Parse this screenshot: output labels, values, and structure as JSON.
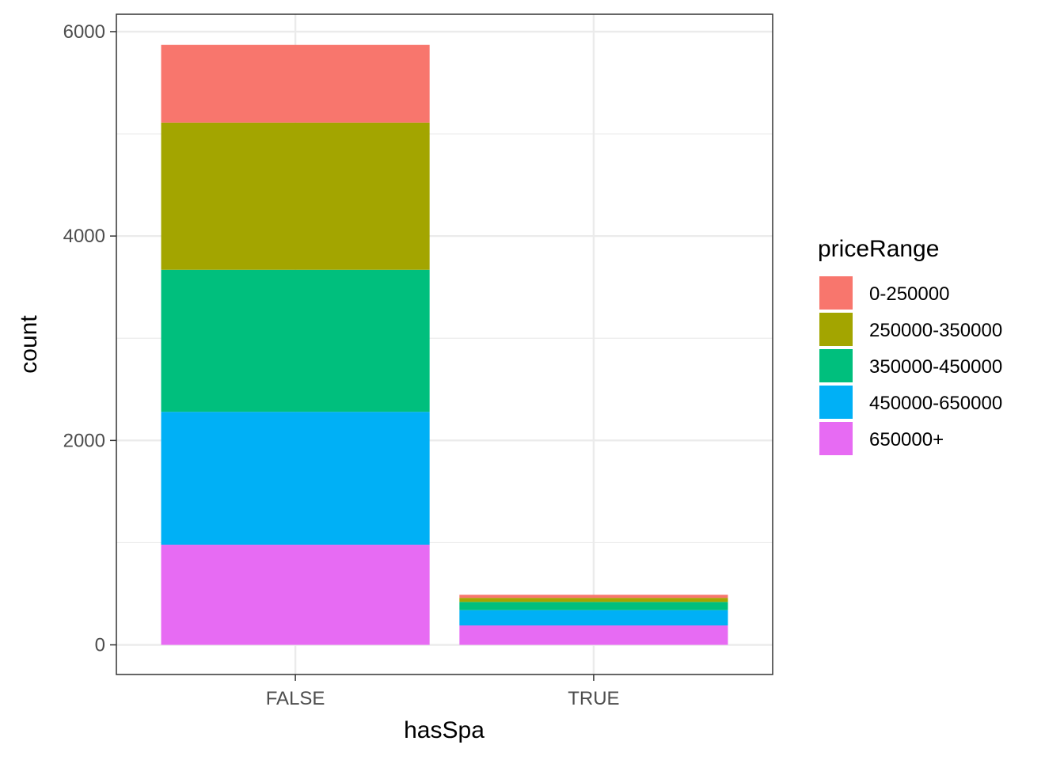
{
  "chart_data": {
    "type": "bar",
    "stacked": true,
    "categories": [
      "FALSE",
      "TRUE"
    ],
    "xlabel": "hasSpa",
    "ylabel": "count",
    "ylim": [
      -290,
      6170
    ],
    "yticks": [
      0,
      2000,
      4000,
      6000
    ],
    "grid": true,
    "legend": {
      "title": "priceRange",
      "position": "right"
    },
    "series": [
      {
        "name": "0-250000",
        "color": "#F8766D",
        "values": [
          760,
          30
        ]
      },
      {
        "name": "250000-350000",
        "color": "#A3A500",
        "values": [
          1440,
          40
        ]
      },
      {
        "name": "350000-450000",
        "color": "#00BF7D",
        "values": [
          1390,
          80
        ]
      },
      {
        "name": "450000-650000",
        "color": "#00B0F6",
        "values": [
          1300,
          150
        ]
      },
      {
        "name": "650000+",
        "color": "#E76BF3",
        "values": [
          980,
          190
        ]
      }
    ]
  }
}
